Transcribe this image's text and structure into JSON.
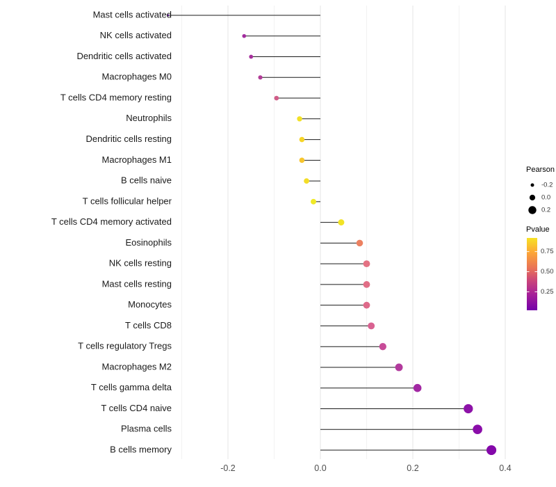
{
  "chart_data": {
    "type": "lollipop",
    "title": "",
    "xlabel": "",
    "ylabel": "",
    "xlim": [
      -0.34,
      0.45
    ],
    "grid": true,
    "x_ticks": [
      -0.2,
      0.0,
      0.2,
      0.4
    ],
    "x_tick_labels": [
      "-0.2",
      "0.0",
      "0.2",
      "0.4"
    ],
    "x_minor_ticks": [
      -0.3,
      -0.1,
      0.1,
      0.3
    ],
    "items": [
      {
        "label": "Mast cells activated",
        "pearson": -0.33,
        "color": "#5e01a5"
      },
      {
        "label": "NK cells activated",
        "pearson": -0.165,
        "color": "#a22c9e"
      },
      {
        "label": "Dendritic cells activated",
        "pearson": -0.15,
        "color": "#a62f9c"
      },
      {
        "label": "Macrophages M0",
        "pearson": -0.13,
        "color": "#b23c97"
      },
      {
        "label": "T cells CD4 memory resting",
        "pearson": -0.095,
        "color": "#d05d88"
      },
      {
        "label": "Neutrophils",
        "pearson": -0.045,
        "color": "#f2e127"
      },
      {
        "label": "Dendritic cells resting",
        "pearson": -0.04,
        "color": "#f6d428"
      },
      {
        "label": "Macrophages M1",
        "pearson": -0.04,
        "color": "#f7c52d"
      },
      {
        "label": "B cells naive",
        "pearson": -0.03,
        "color": "#f3dd27"
      },
      {
        "label": "T cells follicular helper",
        "pearson": -0.015,
        "color": "#f0e927"
      },
      {
        "label": "T cells CD4 memory activated",
        "pearson": 0.045,
        "color": "#f2e326"
      },
      {
        "label": "Eosinophils",
        "pearson": 0.085,
        "color": "#ec8161"
      },
      {
        "label": "NK cells resting",
        "pearson": 0.1,
        "color": "#e47283"
      },
      {
        "label": "Mast cells resting",
        "pearson": 0.1,
        "color": "#e16e86"
      },
      {
        "label": "Monocytes",
        "pearson": 0.1,
        "color": "#de6a8a"
      },
      {
        "label": "T cells CD8",
        "pearson": 0.11,
        "color": "#d96291"
      },
      {
        "label": "T cells regulatory  Tregs",
        "pearson": 0.135,
        "color": "#c74b98"
      },
      {
        "label": "Macrophages M2",
        "pearson": 0.17,
        "color": "#b23a9d"
      },
      {
        "label": "T cells gamma delta",
        "pearson": 0.21,
        "color": "#a228a3"
      },
      {
        "label": "T cells CD4 naive",
        "pearson": 0.32,
        "color": "#8d13a8"
      },
      {
        "label": "Plasma cells",
        "pearson": 0.34,
        "color": "#8a0da9"
      },
      {
        "label": "B cells memory",
        "pearson": 0.37,
        "color": "#8408aa"
      }
    ],
    "legend": {
      "size_legend": {
        "title": "Pearson",
        "entries": [
          {
            "label": "-0.2",
            "value": -0.2
          },
          {
            "label": "0.0",
            "value": 0.0
          },
          {
            "label": "0.2",
            "value": 0.2
          }
        ],
        "dot_color": "#000000"
      },
      "color_legend": {
        "title": "Pvalue",
        "tick_labels": [
          "0.75",
          "0.50",
          "0.25"
        ],
        "tick_values": [
          0.75,
          0.5,
          0.25
        ],
        "range_top": 0.92,
        "range_bottom": 0.02,
        "gradient_stops": [
          {
            "offset": 0.0,
            "color": "#f7e225"
          },
          {
            "offset": 0.2,
            "color": "#fca636"
          },
          {
            "offset": 0.42,
            "color": "#e97257"
          },
          {
            "offset": 0.58,
            "color": "#cc4778"
          },
          {
            "offset": 0.78,
            "color": "#a62098"
          },
          {
            "offset": 1.0,
            "color": "#7301a8"
          }
        ]
      }
    },
    "style_colors": {
      "grid_major": "#e4e4e4",
      "grid_minor": "#f2f2f2",
      "stem": "#1a1a1a",
      "axis_text": "#4d4d4d",
      "category_text": "#1a1a1a",
      "legend_text": "#333333",
      "legend_title_text": "#000000"
    }
  }
}
